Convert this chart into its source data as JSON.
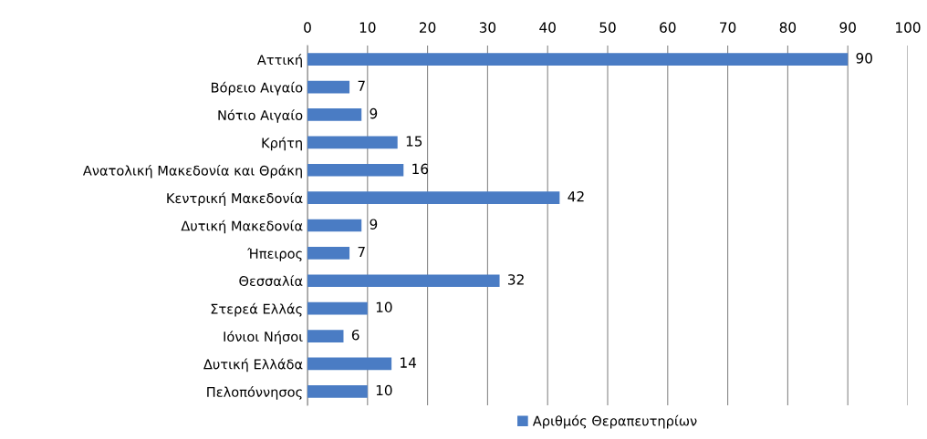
{
  "chart_data": {
    "type": "bar",
    "orientation": "horizontal",
    "categories": [
      "Αττική",
      "Βόρειο Αιγαίο",
      "Νότιο Αιγαίο",
      "Κρήτη",
      "Ανατολική Μακεδονία και Θράκη",
      "Κεντρική Μακεδονία",
      "Δυτική Μακεδονία",
      "Ήπειρος",
      "Θεσσαλία",
      "Στερεά Ελλάς",
      "Ιόνιοι Νήσοι",
      "Δυτική Ελλάδα",
      "Πελοπόννησος"
    ],
    "series": [
      {
        "name": "Αριθμός Θεραπευτηρίων",
        "color": "#4a7cc4",
        "values": [
          90,
          7,
          9,
          15,
          16,
          42,
          9,
          7,
          32,
          10,
          6,
          14,
          10
        ]
      }
    ],
    "xlim": [
      0,
      100
    ],
    "xticks": [
      0,
      10,
      20,
      30,
      40,
      50,
      60,
      70,
      80,
      90,
      100
    ],
    "grid": "x",
    "legend": "bottom",
    "data_labels": true
  }
}
